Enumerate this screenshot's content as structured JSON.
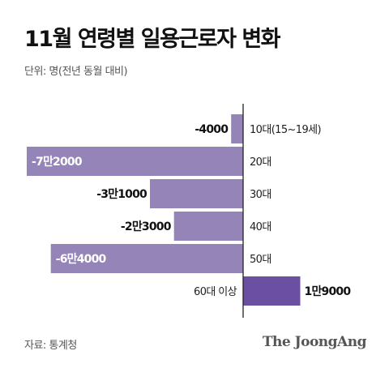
{
  "title": "11월 연령별 일용근로자 변화",
  "unit_note": "단위: 명(전년 동월 대비)",
  "source": "자료: 통계청",
  "brand": "The JoongAng",
  "colors": {
    "negative": "#9484b8",
    "positive": "#6a4fa3",
    "axis": "#222222",
    "label_inside": "#ffffff",
    "label_outside": "#111111"
  },
  "chart_data": {
    "type": "bar",
    "orientation": "horizontal",
    "categories": [
      "10대(15~19세)",
      "20대",
      "30대",
      "40대",
      "50대",
      "60대 이상"
    ],
    "values": [
      -4000,
      -72000,
      -31000,
      -23000,
      -64000,
      19000
    ],
    "value_labels": [
      "-4000",
      "-7만2000",
      "-3만1000",
      "-2만3000",
      "-6만4000",
      "1만9000"
    ]
  }
}
